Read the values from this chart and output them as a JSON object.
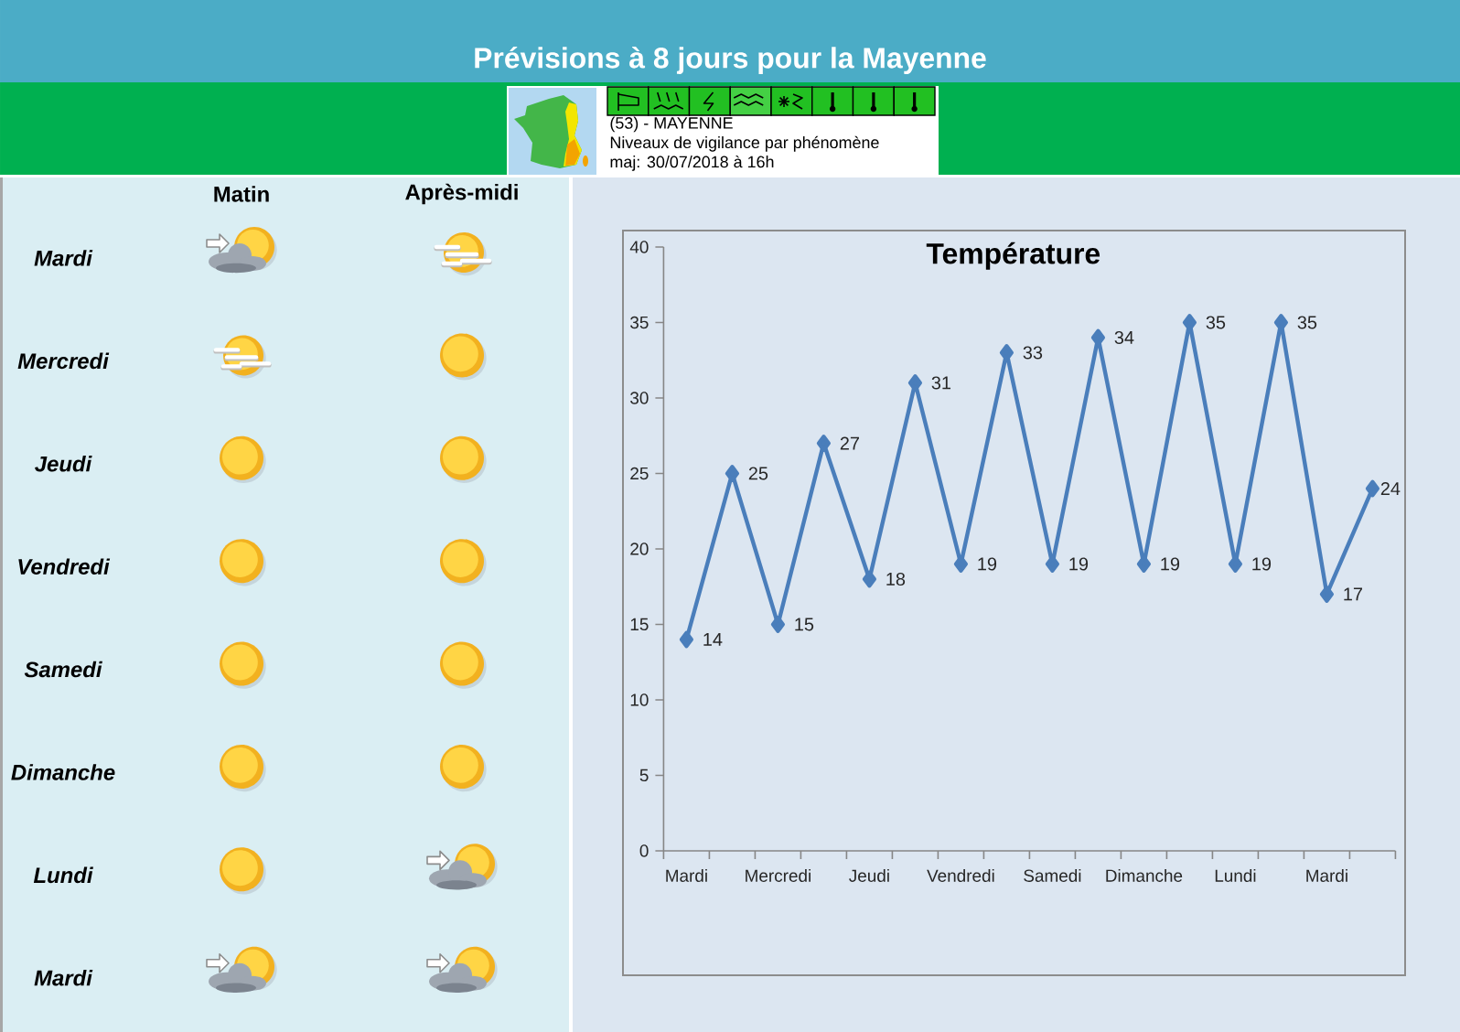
{
  "chart_data": [
    {
      "type": "other",
      "title": "Prévisions à 8 jours pour la Mayenne",
      "annotations": [
        "(53) - MAYENNE",
        "Niveaux de vigilance par phénomène",
        "maj: 30/07/2018 à 16h"
      ]
    },
    {
      "type": "other",
      "categories": [
        "Matin",
        "Après-midi"
      ],
      "y_categories": [
        "Mardi",
        "Mercredi",
        "Jeudi",
        "Vendredi",
        "Samedi",
        "Dimanche",
        "Lundi",
        "Mardi"
      ]
    },
    {
      "type": "line",
      "title": "Température",
      "categories": [
        "Mardi",
        null,
        "Mercredi",
        null,
        "Jeudi",
        null,
        "Vendredi",
        null,
        "Samedi",
        null,
        "Dimanche",
        null,
        "Lundi",
        null,
        "Mardi",
        null
      ],
      "values": [
        14,
        25,
        15,
        27,
        18,
        31,
        19,
        33,
        19,
        34,
        19,
        35,
        19,
        35,
        17,
        24
      ],
      "color": "#4a7ebb",
      "ylim": [
        0,
        40
      ],
      "yticks": [
        0,
        5,
        10,
        15,
        20,
        25,
        30,
        35,
        40
      ],
      "data_labels": true,
      "marker": "diamond",
      "line_style": "solid"
    }
  ]
}
